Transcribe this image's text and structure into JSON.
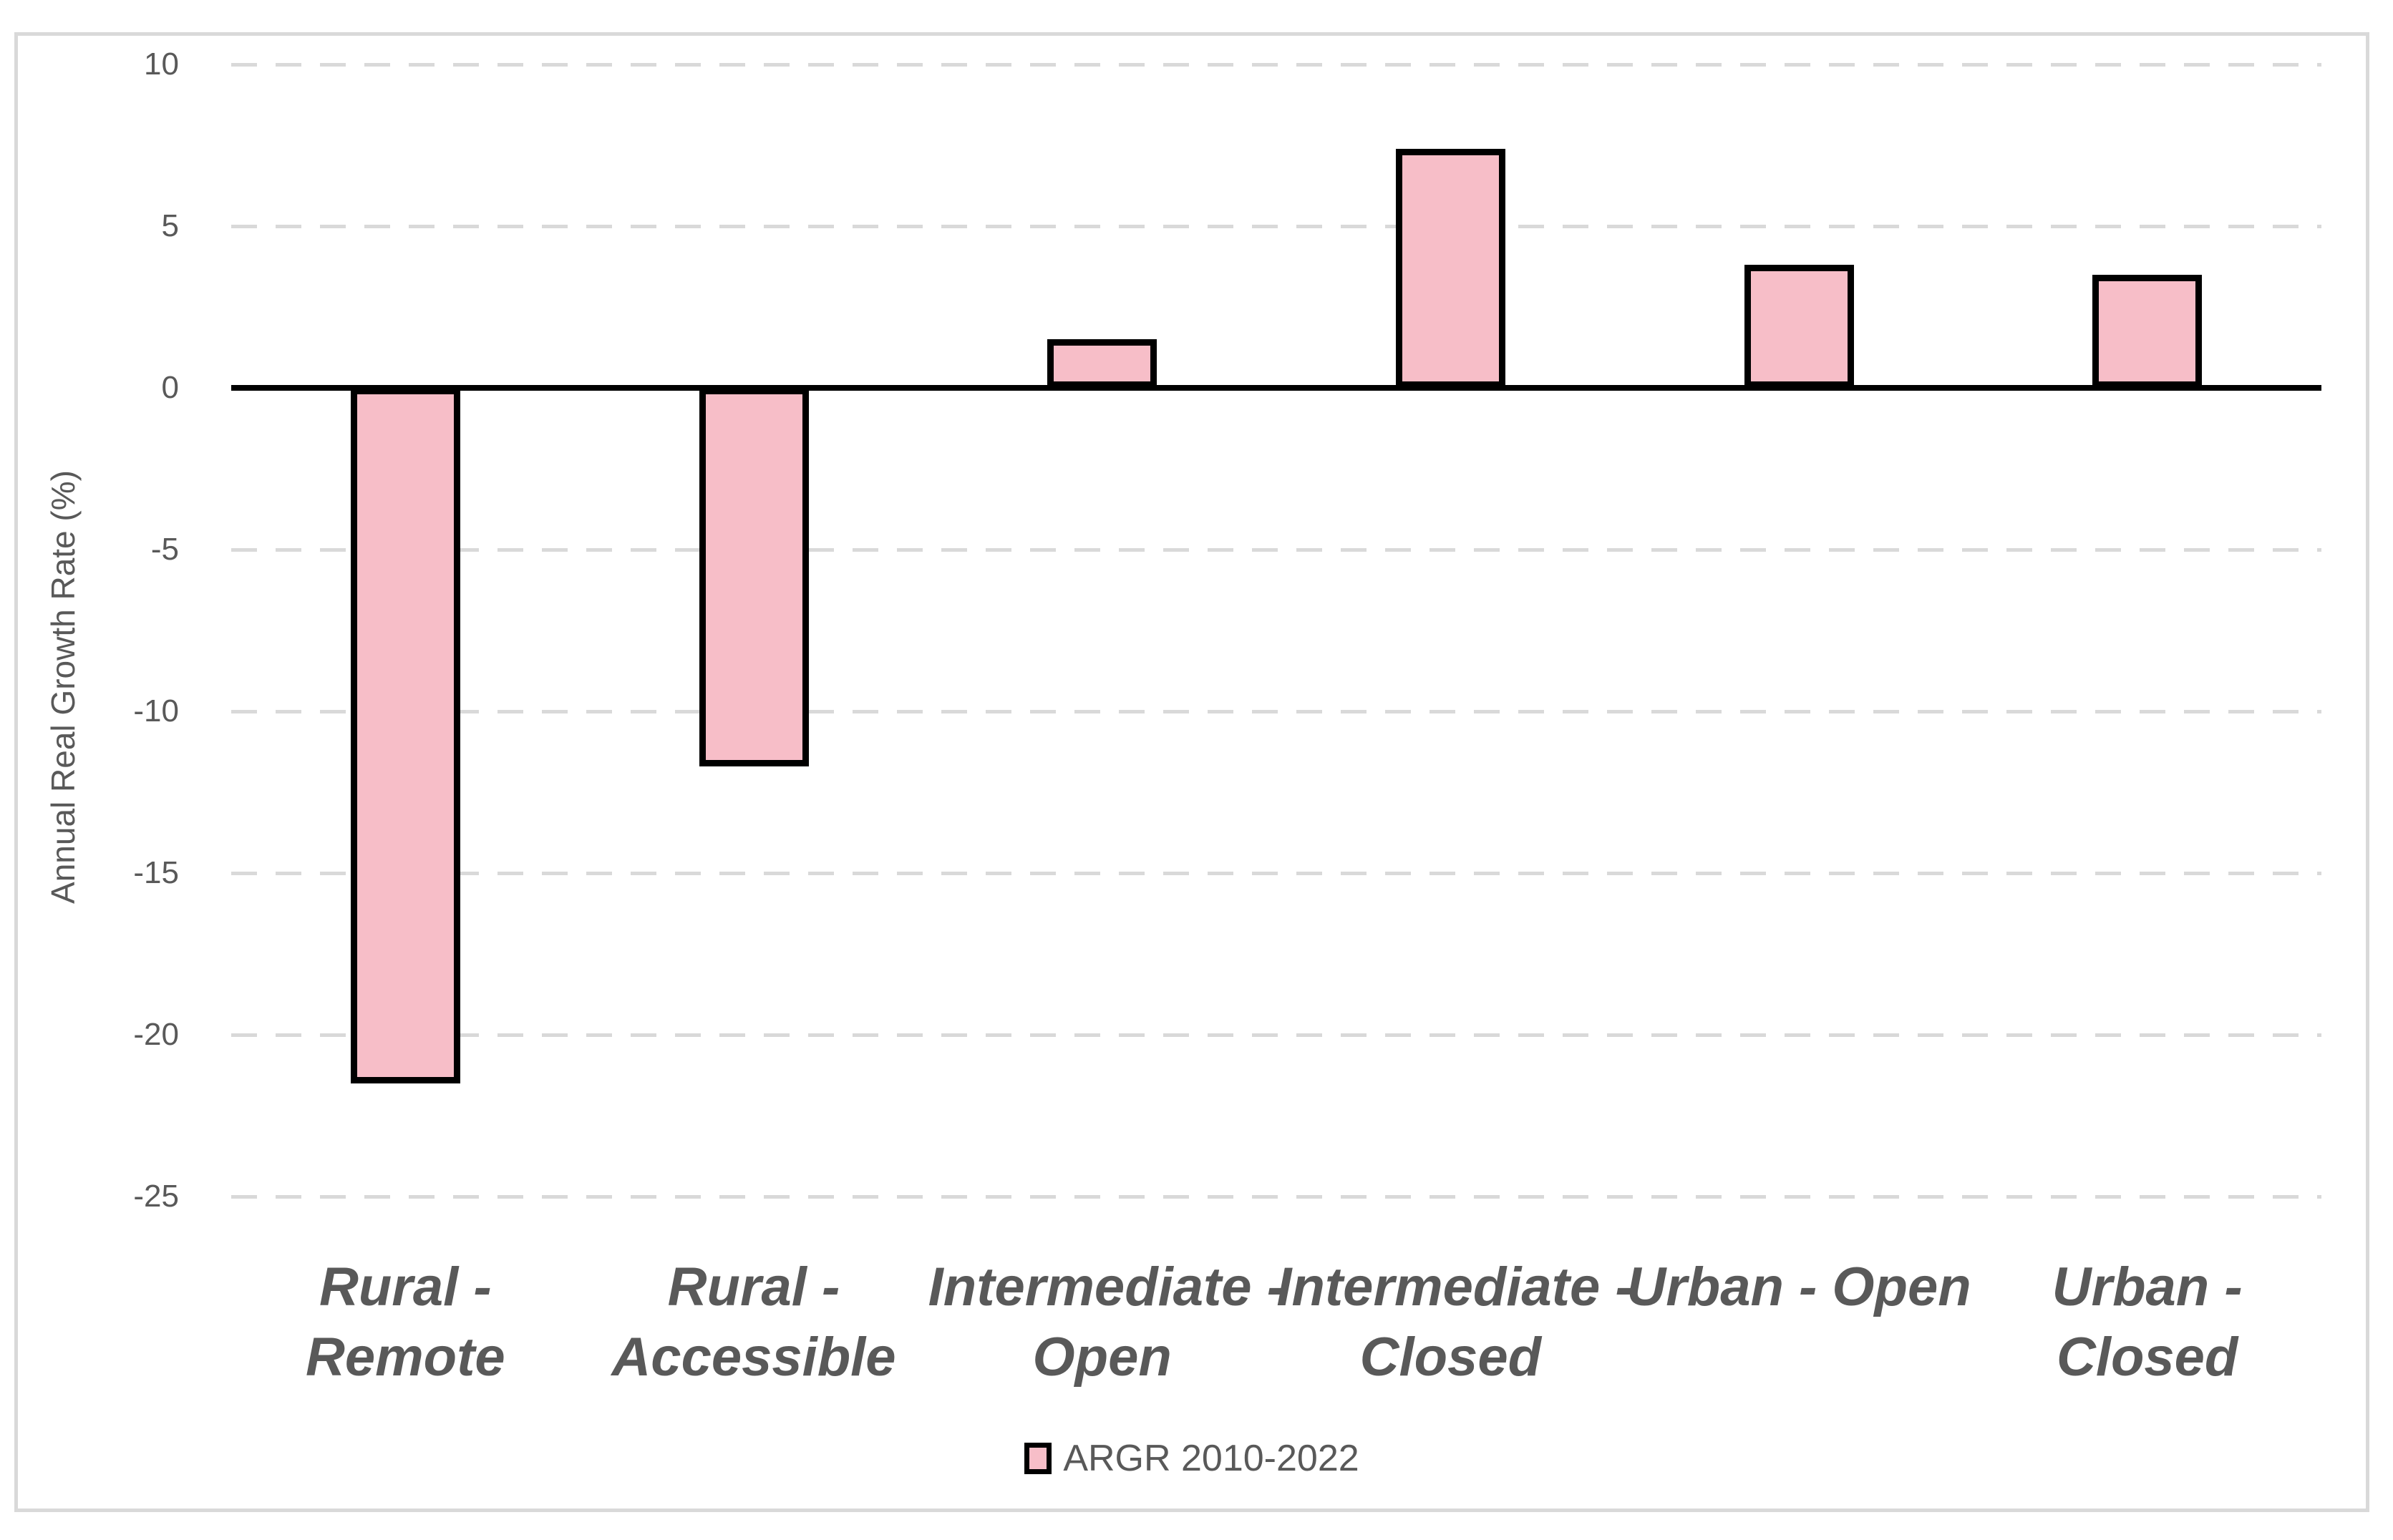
{
  "chart_data": {
    "type": "bar",
    "title": "",
    "xlabel": "",
    "ylabel": "Annual Real Growth Rate (%)",
    "categories": [
      "Rural - Remote",
      "Rural - Accessible",
      "Intermediate - Open",
      "Intermediate - Closed",
      "Urban - Open",
      "Urban - Closed"
    ],
    "category_label_lines": [
      [
        "Rural -",
        "Remote"
      ],
      [
        "Rural -",
        "Accessible"
      ],
      [
        "Intermediate -",
        "Open"
      ],
      [
        "Intermediate -",
        "Closed"
      ],
      [
        "Urban - Open"
      ],
      [
        "Urban -",
        "Closed"
      ]
    ],
    "series": [
      {
        "name": "ARGR 2010-2022",
        "values": [
          -21.5,
          -11.7,
          1.5,
          7.4,
          3.8,
          3.5
        ]
      }
    ],
    "ylim": [
      -25,
      10
    ],
    "yticks": [
      10,
      5,
      0,
      -5,
      -10,
      -15,
      -20,
      -25
    ],
    "grid": "horizontal-dashed",
    "legend_position": "bottom-center"
  },
  "legend": {
    "label": "ARGR 2010-2022"
  },
  "colors": {
    "bar_fill": "#F7BEC8",
    "bar_border": "#000000",
    "gridline": "#D9D9D9",
    "axis_line": "#000000",
    "text": "#595959",
    "frame_border": "#D9D9D9",
    "background": "#FFFFFF"
  }
}
